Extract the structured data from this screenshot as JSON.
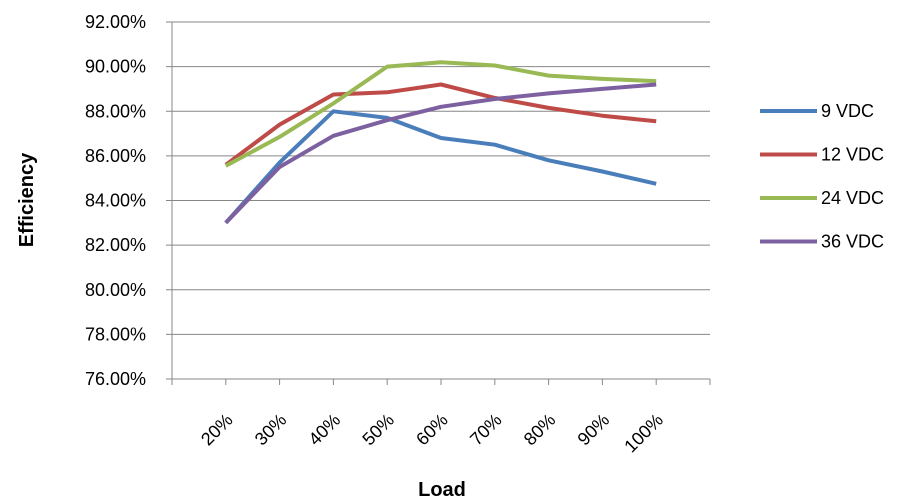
{
  "chart_data": {
    "type": "line",
    "xlabel": "Load",
    "ylabel": "Efficiency",
    "categories": [
      "20%",
      "30%",
      "40%",
      "50%",
      "60%",
      "70%",
      "80%",
      "90%",
      "100%"
    ],
    "ylim": [
      0.76,
      0.92
    ],
    "yticks": [
      0.76,
      0.78,
      0.8,
      0.82,
      0.84,
      0.86,
      0.88,
      0.9,
      0.92
    ],
    "ytick_labels": [
      "76.00%",
      "78.00%",
      "80.00%",
      "82.00%",
      "84.00%",
      "86.00%",
      "88.00%",
      "90.00%",
      "92.00%"
    ],
    "grid": "horizontal",
    "legend": "right",
    "series": [
      {
        "name": "9 VDC",
        "color": "#4a7ebb",
        "values": [
          0.83,
          0.857,
          0.88,
          0.877,
          0.868,
          0.865,
          0.858,
          0.853,
          0.8475
        ]
      },
      {
        "name": "12 VDC",
        "color": "#be4b48",
        "values": [
          0.856,
          0.874,
          0.8875,
          0.8885,
          0.892,
          0.886,
          0.8815,
          0.878,
          0.8755
        ]
      },
      {
        "name": "24 VDC",
        "color": "#98b954",
        "values": [
          0.8555,
          0.8685,
          0.8835,
          0.9,
          0.902,
          0.9005,
          0.896,
          0.8945,
          0.8935
        ]
      },
      {
        "name": "36 VDC",
        "color": "#7d60a0",
        "values": [
          0.83,
          0.855,
          0.869,
          0.876,
          0.882,
          0.8855,
          0.888,
          0.89,
          0.892
        ]
      }
    ]
  }
}
